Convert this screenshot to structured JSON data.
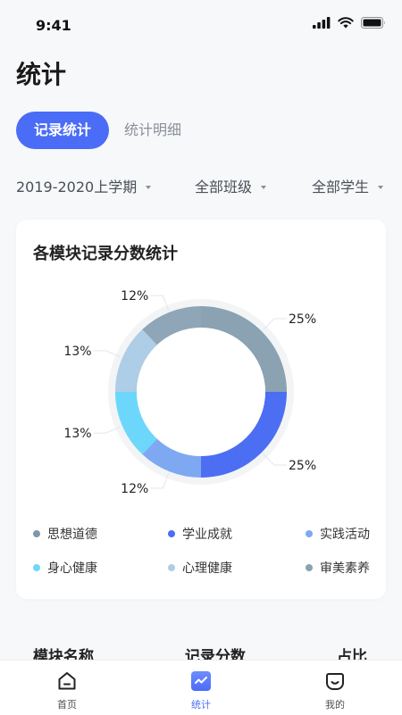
{
  "status_bar": {
    "time": "9:41"
  },
  "page": {
    "title": "统计"
  },
  "segments": {
    "active": "记录统计",
    "inactive": "统计明细"
  },
  "filters": {
    "term": "2019-2020上学期",
    "class": "全部班级",
    "student": "全部学生"
  },
  "card": {
    "title": "各模块记录分数统计"
  },
  "chart_data": {
    "type": "pie",
    "subtype": "donut",
    "title": "各模块记录分数统计",
    "categories": [
      "审美素养",
      "学业成就",
      "实践活动",
      "身心健康",
      "心理健康",
      "思想道德"
    ],
    "values": [
      25,
      25,
      12,
      13,
      13,
      12
    ],
    "value_labels": [
      "25%",
      "25%",
      "12%",
      "13%",
      "13%",
      "12%"
    ],
    "colors": [
      "#8aa2b2",
      "#4b6ef2",
      "#7ea9f2",
      "#6dd7fb",
      "#aecde6",
      "#8ea6b8"
    ],
    "legend": [
      "思想道德",
      "学业成就",
      "实践活动",
      "身心健康",
      "心理健康",
      "审美素养"
    ],
    "legend_colors": [
      "#7f97a8",
      "#4b6ef2",
      "#7ea9f2",
      "#6dd7fb",
      "#aecde6",
      "#8aa2b2"
    ],
    "legend_position": "bottom"
  },
  "table": {
    "headers": [
      "模块名称",
      "记录分数",
      "占比"
    ]
  },
  "tabbar": {
    "items": [
      "首页",
      "统计",
      "我的"
    ],
    "active_index": 1,
    "accent": "#4a6cf7"
  }
}
